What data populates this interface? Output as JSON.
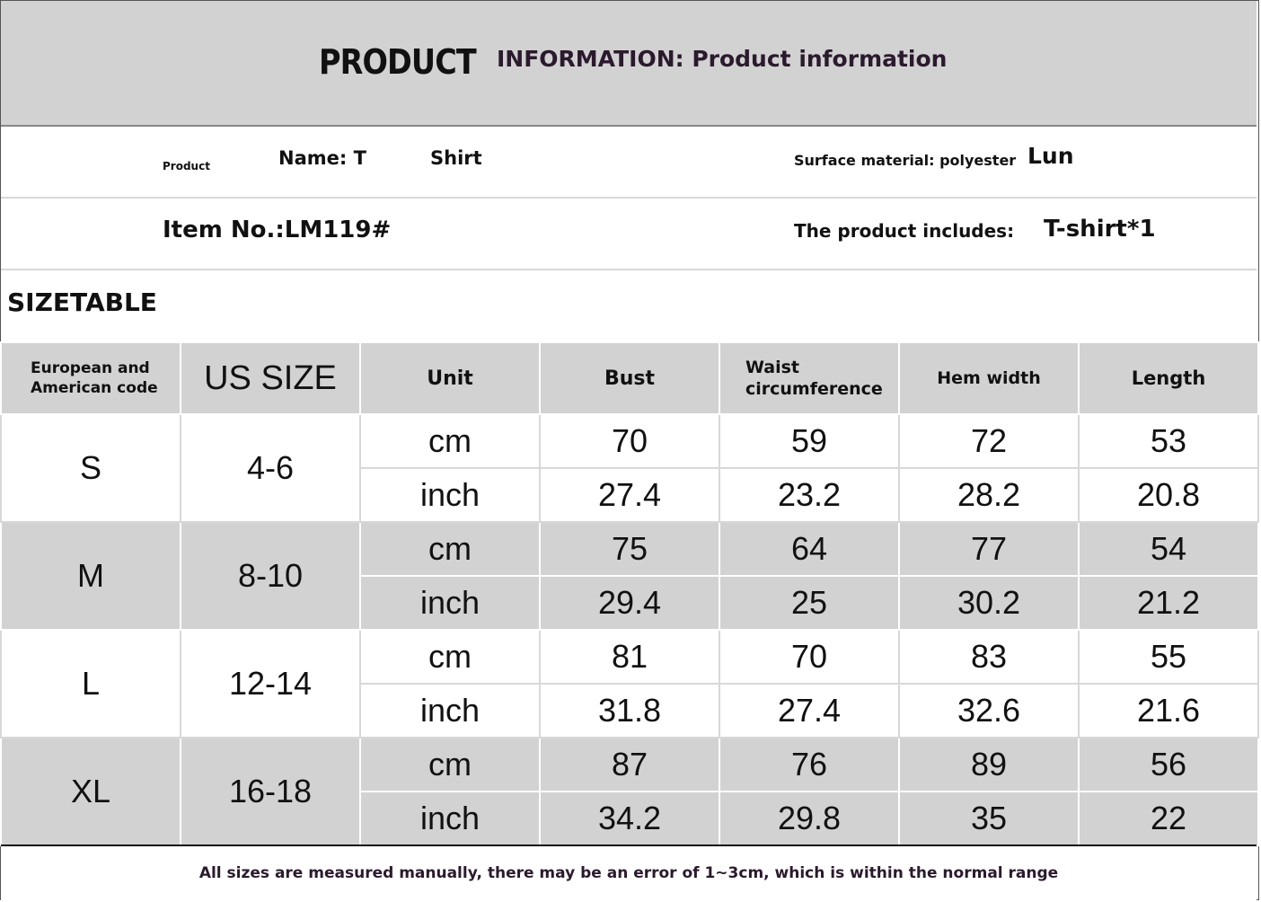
{
  "header": {
    "product": "PRODUCT",
    "information": "INFORMATION: Product information"
  },
  "info": {
    "product_word": "Product",
    "name_label": "Name: T",
    "name_value": "Shirt",
    "material_label": "Surface material: polyester",
    "material_value": "Lun",
    "item_no": "Item No.:LM119#",
    "includes_label": "The product includes:",
    "includes_value": "T-shirt*1"
  },
  "sizetable_label": "SIZETABLE",
  "table": {
    "headers": {
      "eu_line1": "European and",
      "eu_line2": "American code",
      "us_size": "US SIZE",
      "unit": "Unit",
      "bust": "Bust",
      "waist_line1": "Waist",
      "waist_line2": "circumference",
      "hem": "Hem width",
      "length": "Length"
    },
    "rows": [
      {
        "size": "S",
        "us": "4-6",
        "cm": {
          "unit": "cm",
          "bust": "70",
          "waist": "59",
          "hem": "72",
          "length": "53"
        },
        "inch": {
          "unit": "inch",
          "bust": "27.4",
          "waist": "23.2",
          "hem": "28.2",
          "length": "20.8"
        }
      },
      {
        "size": "M",
        "us": "8-10",
        "cm": {
          "unit": "cm",
          "bust": "75",
          "waist": "64",
          "hem": "77",
          "length": "54"
        },
        "inch": {
          "unit": "inch",
          "bust": "29.4",
          "waist": "25",
          "hem": "30.2",
          "length": "21.2"
        }
      },
      {
        "size": "L",
        "us": "12-14",
        "cm": {
          "unit": "cm",
          "bust": "81",
          "waist": "70",
          "hem": "83",
          "length": "55"
        },
        "inch": {
          "unit": "inch",
          "bust": "31.8",
          "waist": "27.4",
          "hem": "32.6",
          "length": "21.6"
        }
      },
      {
        "size": "XL",
        "us": "16-18",
        "cm": {
          "unit": "cm",
          "bust": "87",
          "waist": "76",
          "hem": "89",
          "length": "56"
        },
        "inch": {
          "unit": "inch",
          "bust": "34.2",
          "waist": "29.8",
          "hem": "35",
          "length": "22"
        }
      }
    ]
  },
  "footer": "All sizes are measured manually, there may be an error of 1~3cm, which is within the normal range",
  "colors": {
    "band": "#d2d2d2",
    "text": "#111111",
    "header_text": "#2b1a2d"
  }
}
